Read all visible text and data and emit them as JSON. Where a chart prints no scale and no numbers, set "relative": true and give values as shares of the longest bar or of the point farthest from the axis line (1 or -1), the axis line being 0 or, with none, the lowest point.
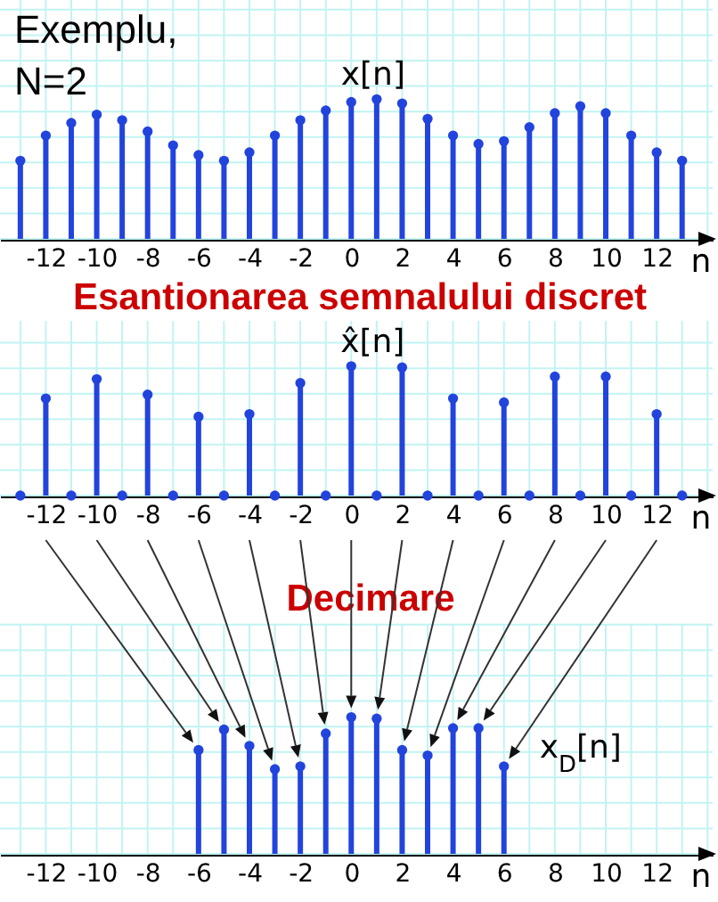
{
  "chart_data": [
    {
      "type": "lollipop",
      "annotations": [
        "Exemplu,\nN=2"
      ],
      "xlabel": "n",
      "x": [
        -13,
        -12,
        -11,
        -10,
        -9,
        -8,
        -7,
        -6,
        -5,
        -4,
        -3,
        -2,
        -1,
        0,
        1,
        2,
        3,
        4,
        5,
        6,
        7,
        8,
        9,
        10,
        11,
        12,
        13
      ],
      "series": [
        {
          "name": "x[n]",
          "color": "#2244dd",
          "values": [
            0.56,
            0.74,
            0.83,
            0.89,
            0.85,
            0.77,
            0.67,
            0.6,
            0.56,
            0.62,
            0.74,
            0.85,
            0.92,
            0.98,
            1,
            0.97,
            0.86,
            0.74,
            0.68,
            0.7,
            0.8,
            0.9,
            0.95,
            0.9,
            0.74,
            0.62,
            0.56
          ]
        }
      ],
      "relative": true,
      "xlim": [
        -13.8,
        14.2
      ],
      "xticks": [
        -12,
        -10,
        -8,
        -6,
        -4,
        -2,
        0,
        2,
        4,
        6,
        8,
        10,
        12
      ],
      "grid": true,
      "marker": "circle"
    },
    {
      "type": "lollipop",
      "title": "Esantionarea semnalului discret",
      "xlabel": "n",
      "x": [
        -13,
        -12,
        -11,
        -10,
        -9,
        -8,
        -7,
        -6,
        -5,
        -4,
        -3,
        -2,
        -1,
        0,
        1,
        2,
        3,
        4,
        5,
        6,
        7,
        8,
        9,
        10,
        11,
        12,
        13
      ],
      "series": [
        {
          "name": "x̂[n]",
          "color": "#2244dd",
          "values": [
            0,
            0.75,
            0,
            0.9,
            0,
            0.78,
            0,
            0.61,
            0,
            0.63,
            0,
            0.87,
            0,
            1,
            0,
            0.99,
            0,
            0.75,
            0,
            0.72,
            0,
            0.92,
            0,
            0.92,
            0,
            0.63,
            0
          ]
        }
      ],
      "relative": true,
      "xlim": [
        -13.8,
        14.2
      ],
      "xticks": [
        -12,
        -10,
        -8,
        -6,
        -4,
        -2,
        0,
        2,
        4,
        6,
        8,
        10,
        12
      ],
      "grid": true,
      "marker": "circle"
    },
    {
      "type": "lollipop",
      "title": "Decimare",
      "xlabel": "n",
      "x": [
        -6,
        -5,
        -4,
        -3,
        -2,
        -1,
        0,
        1,
        2,
        3,
        4,
        5,
        6
      ],
      "series": [
        {
          "name": "x$_{D}$[n]",
          "color": "#2244dd",
          "values": [
            0.76,
            0.91,
            0.79,
            0.62,
            0.64,
            0.88,
            1,
            0.99,
            0.76,
            0.72,
            0.92,
            0.92,
            0.64
          ]
        }
      ],
      "relative": true,
      "xlim": [
        -13.8,
        14.2
      ],
      "xticks": [
        -12,
        -10,
        -8,
        -6,
        -4,
        -2,
        0,
        2,
        4,
        6,
        8,
        10,
        12
      ],
      "grid": true,
      "marker": "circle"
    }
  ]
}
